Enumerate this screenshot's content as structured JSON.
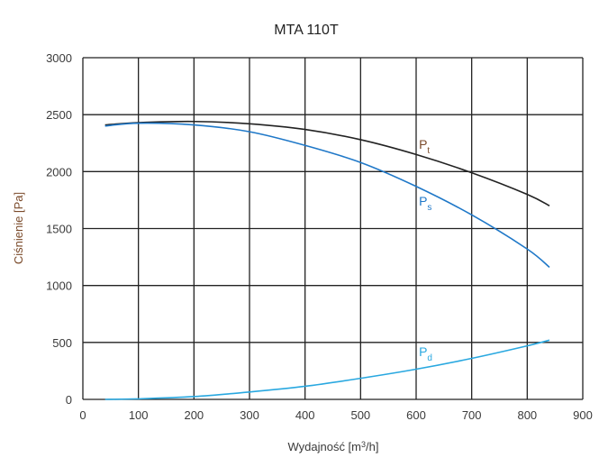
{
  "chart_data": {
    "type": "line",
    "title": "MTA 110T",
    "xlabel_prefix": "Wydajność [m",
    "xlabel_sup": "3",
    "xlabel_suffix": "/h]",
    "ylabel": "Ciśnienie [Pa]",
    "xlim": [
      0,
      900
    ],
    "ylim": [
      0,
      3000
    ],
    "xticks": [
      0,
      100,
      200,
      300,
      400,
      500,
      600,
      700,
      800,
      900
    ],
    "yticks": [
      0,
      500,
      1000,
      1500,
      2000,
      2500,
      3000
    ],
    "grid": true,
    "series": [
      {
        "name": "Pt",
        "label_main": "P",
        "label_sub": "t",
        "color": "#222222",
        "label_at": [
          605,
          2200
        ],
        "x": [
          40,
          100,
          200,
          300,
          400,
          500,
          600,
          700,
          800,
          840
        ],
        "y": [
          2410,
          2430,
          2440,
          2420,
          2370,
          2280,
          2150,
          1990,
          1800,
          1700
        ]
      },
      {
        "name": "Ps",
        "label_main": "P",
        "label_sub": "s",
        "color": "#1f78c8",
        "label_at": [
          605,
          1700
        ],
        "x": [
          40,
          100,
          200,
          300,
          400,
          500,
          600,
          700,
          800,
          840
        ],
        "y": [
          2400,
          2425,
          2410,
          2350,
          2230,
          2080,
          1870,
          1620,
          1320,
          1160
        ]
      },
      {
        "name": "Pd",
        "label_main": "P",
        "label_sub": "d",
        "color": "#29a8e0",
        "label_at": [
          605,
          380
        ],
        "x": [
          40,
          100,
          200,
          300,
          400,
          500,
          600,
          700,
          800,
          840
        ],
        "y": [
          0,
          5,
          25,
          65,
          115,
          185,
          265,
          360,
          470,
          520
        ]
      }
    ]
  }
}
